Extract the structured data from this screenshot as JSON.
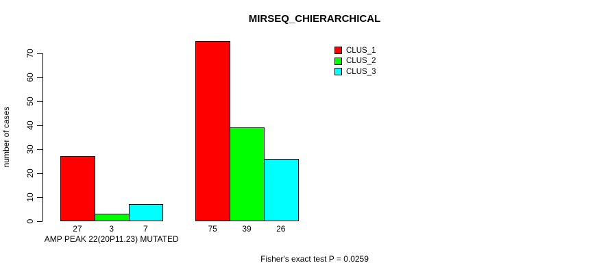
{
  "chart_data": {
    "type": "bar",
    "title": "MIRSEQ_CHIERARCHICAL",
    "ylabel": "number of cases",
    "xlabel": "",
    "ylim": [
      0,
      70
    ],
    "yticks": [
      0,
      10,
      20,
      30,
      40,
      50,
      60,
      70
    ],
    "grid": false,
    "categories": [
      "AMP PEAK 22(20P11.23) MUTATED",
      ""
    ],
    "series": [
      {
        "name": "CLUS_1",
        "color": "#FF0000",
        "values": [
          27,
          75
        ]
      },
      {
        "name": "CLUS_2",
        "color": "#00FF00",
        "values": [
          3,
          39
        ]
      },
      {
        "name": "CLUS_3",
        "color": "#00FFFF",
        "values": [
          7,
          26
        ]
      }
    ],
    "legend": {
      "position": "top-right"
    },
    "annotation": "Fisher's exact test P = 0.0259"
  }
}
